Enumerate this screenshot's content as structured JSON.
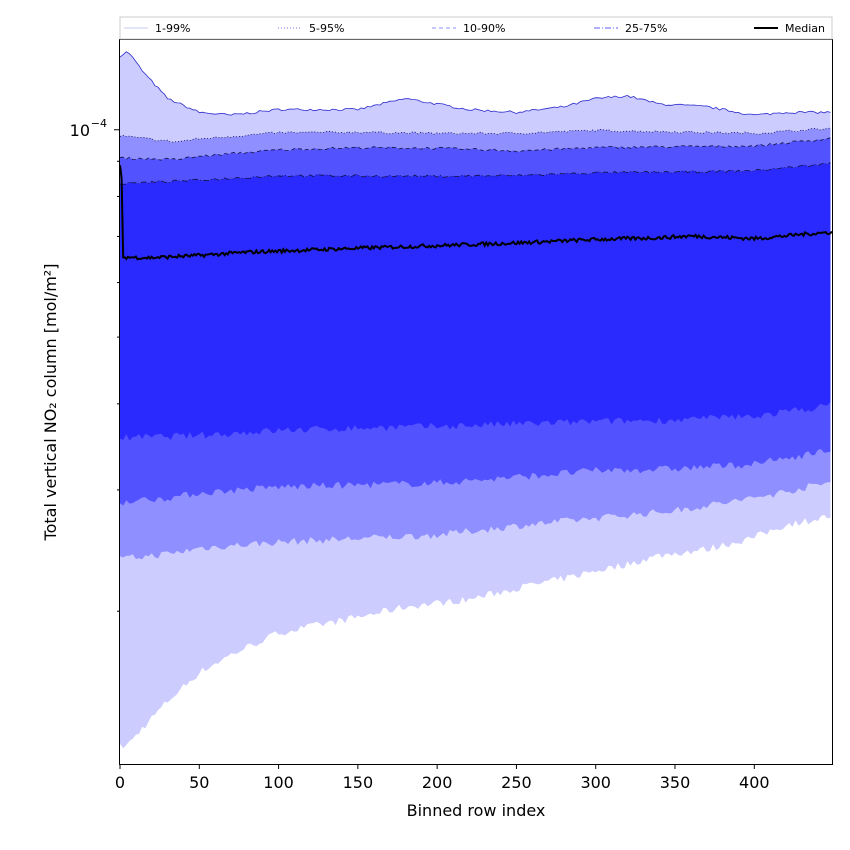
{
  "chart_data": {
    "type": "area",
    "title": "",
    "xlabel": "Binned row index",
    "ylabel": "Total vertical NO₂ column [mol/m²]",
    "yscale": "log",
    "xlim": [
      0,
      449
    ],
    "ylim": [
      1.2e-05,
      0.000135
    ],
    "x_ticks": [
      0,
      50,
      100,
      150,
      200,
      250,
      300,
      350,
      400
    ],
    "y_major_tick": {
      "value": 0.0001,
      "label_base": "10",
      "label_exp": "−4"
    },
    "y_minor_ticks": [
      2e-05,
      3e-05,
      4e-05,
      5e-05,
      6e-05,
      7e-05,
      8e-05,
      9e-05
    ],
    "legend_position": "top",
    "colors": {
      "band_1_99": "#ccccff",
      "band_5_95": "#8f8fff",
      "band_10_90": "#5252ff",
      "band_25_75": "#2a2aff",
      "median": "#000000"
    },
    "series": [
      {
        "name": "1-99%",
        "line_style": "solid",
        "line_color": "#c8c8f0",
        "x": [
          0,
          5,
          15,
          30,
          50,
          70,
          100,
          150,
          180,
          220,
          250,
          280,
          300,
          320,
          340,
          370,
          400,
          420,
          449
        ],
        "upper": [
          0.000128,
          0.00013,
          0.000121,
          0.000111,
          0.000106,
          0.000105,
          0.000107,
          0.000107,
          0.000111,
          0.000107,
          0.000106,
          0.000108,
          0.000111,
          0.000112,
          0.000109,
          0.000108,
          0.000105,
          0.000106,
          0.000106
        ],
        "lower": [
          1.27e-05,
          1.28e-05,
          1.36e-05,
          1.48e-05,
          1.63e-05,
          1.73e-05,
          1.86e-05,
          1.96e-05,
          2.03e-05,
          2.08e-05,
          2.16e-05,
          2.23e-05,
          2.29e-05,
          2.34e-05,
          2.41e-05,
          2.46e-05,
          2.56e-05,
          2.67e-05,
          2.75e-05
        ]
      },
      {
        "name": "5-95%",
        "line_style": "dotted",
        "line_color": "#7a7ae0",
        "x": [
          0,
          35,
          50,
          100,
          150,
          200,
          250,
          300,
          350,
          400,
          449
        ],
        "upper": [
          9.8e-05,
          9.6e-05,
          9.7e-05,
          9.9e-05,
          9.92e-05,
          9.88e-05,
          9.88e-05,
          9.98e-05,
          9.93e-05,
          9.88e-05,
          0.0001005
        ],
        "lower": [
          2.38e-05,
          2.43e-05,
          2.47e-05,
          2.52e-05,
          2.55e-05,
          2.58e-05,
          2.66e-05,
          2.73e-05,
          2.8e-05,
          2.92e-05,
          3.08e-05
        ]
      },
      {
        "name": "10-90%",
        "line_style": "dashed",
        "line_color": "#9090ff",
        "x": [
          0,
          35,
          50,
          100,
          150,
          200,
          250,
          300,
          350,
          400,
          449
        ],
        "upper": [
          9.1e-05,
          9.05e-05,
          9.15e-05,
          9.35e-05,
          9.42e-05,
          9.4e-05,
          9.32e-05,
          9.42e-05,
          9.45e-05,
          9.47e-05,
          9.72e-05
        ],
        "lower": [
          2.88e-05,
          2.93e-05,
          2.97e-05,
          3.03e-05,
          3.05e-05,
          3.07e-05,
          3.13e-05,
          3.2e-05,
          3.22e-05,
          3.27e-05,
          3.43e-05
        ]
      },
      {
        "name": "25-75%",
        "line_style": "dashdot",
        "line_color": "#6060ee",
        "x": [
          0,
          50,
          100,
          150,
          200,
          250,
          300,
          350,
          400,
          449
        ],
        "upper": [
          8.35e-05,
          8.45e-05,
          8.58e-05,
          8.57e-05,
          8.56e-05,
          8.58e-05,
          8.66e-05,
          8.68e-05,
          8.72e-05,
          8.94e-05
        ],
        "lower": [
          3.57e-05,
          3.6e-05,
          3.66e-05,
          3.69e-05,
          3.71e-05,
          3.74e-05,
          3.77e-05,
          3.79e-05,
          3.84e-05,
          3.98e-05
        ]
      },
      {
        "name": "Median",
        "line_style": "solid",
        "line_color": "#000000",
        "x": [
          0,
          1,
          2,
          20,
          50,
          80,
          110,
          150,
          200,
          250,
          300,
          320,
          340,
          360,
          380,
          400,
          410,
          430,
          449
        ],
        "values": [
          8.88e-05,
          8.5e-05,
          6.53e-05,
          6.52e-05,
          6.57e-05,
          6.64e-05,
          6.68e-05,
          6.73e-05,
          6.79e-05,
          6.85e-05,
          6.93e-05,
          6.95e-05,
          6.97e-05,
          7.01e-05,
          6.98e-05,
          6.95e-05,
          6.98e-05,
          7.05e-05,
          7.1e-05
        ]
      }
    ]
  }
}
